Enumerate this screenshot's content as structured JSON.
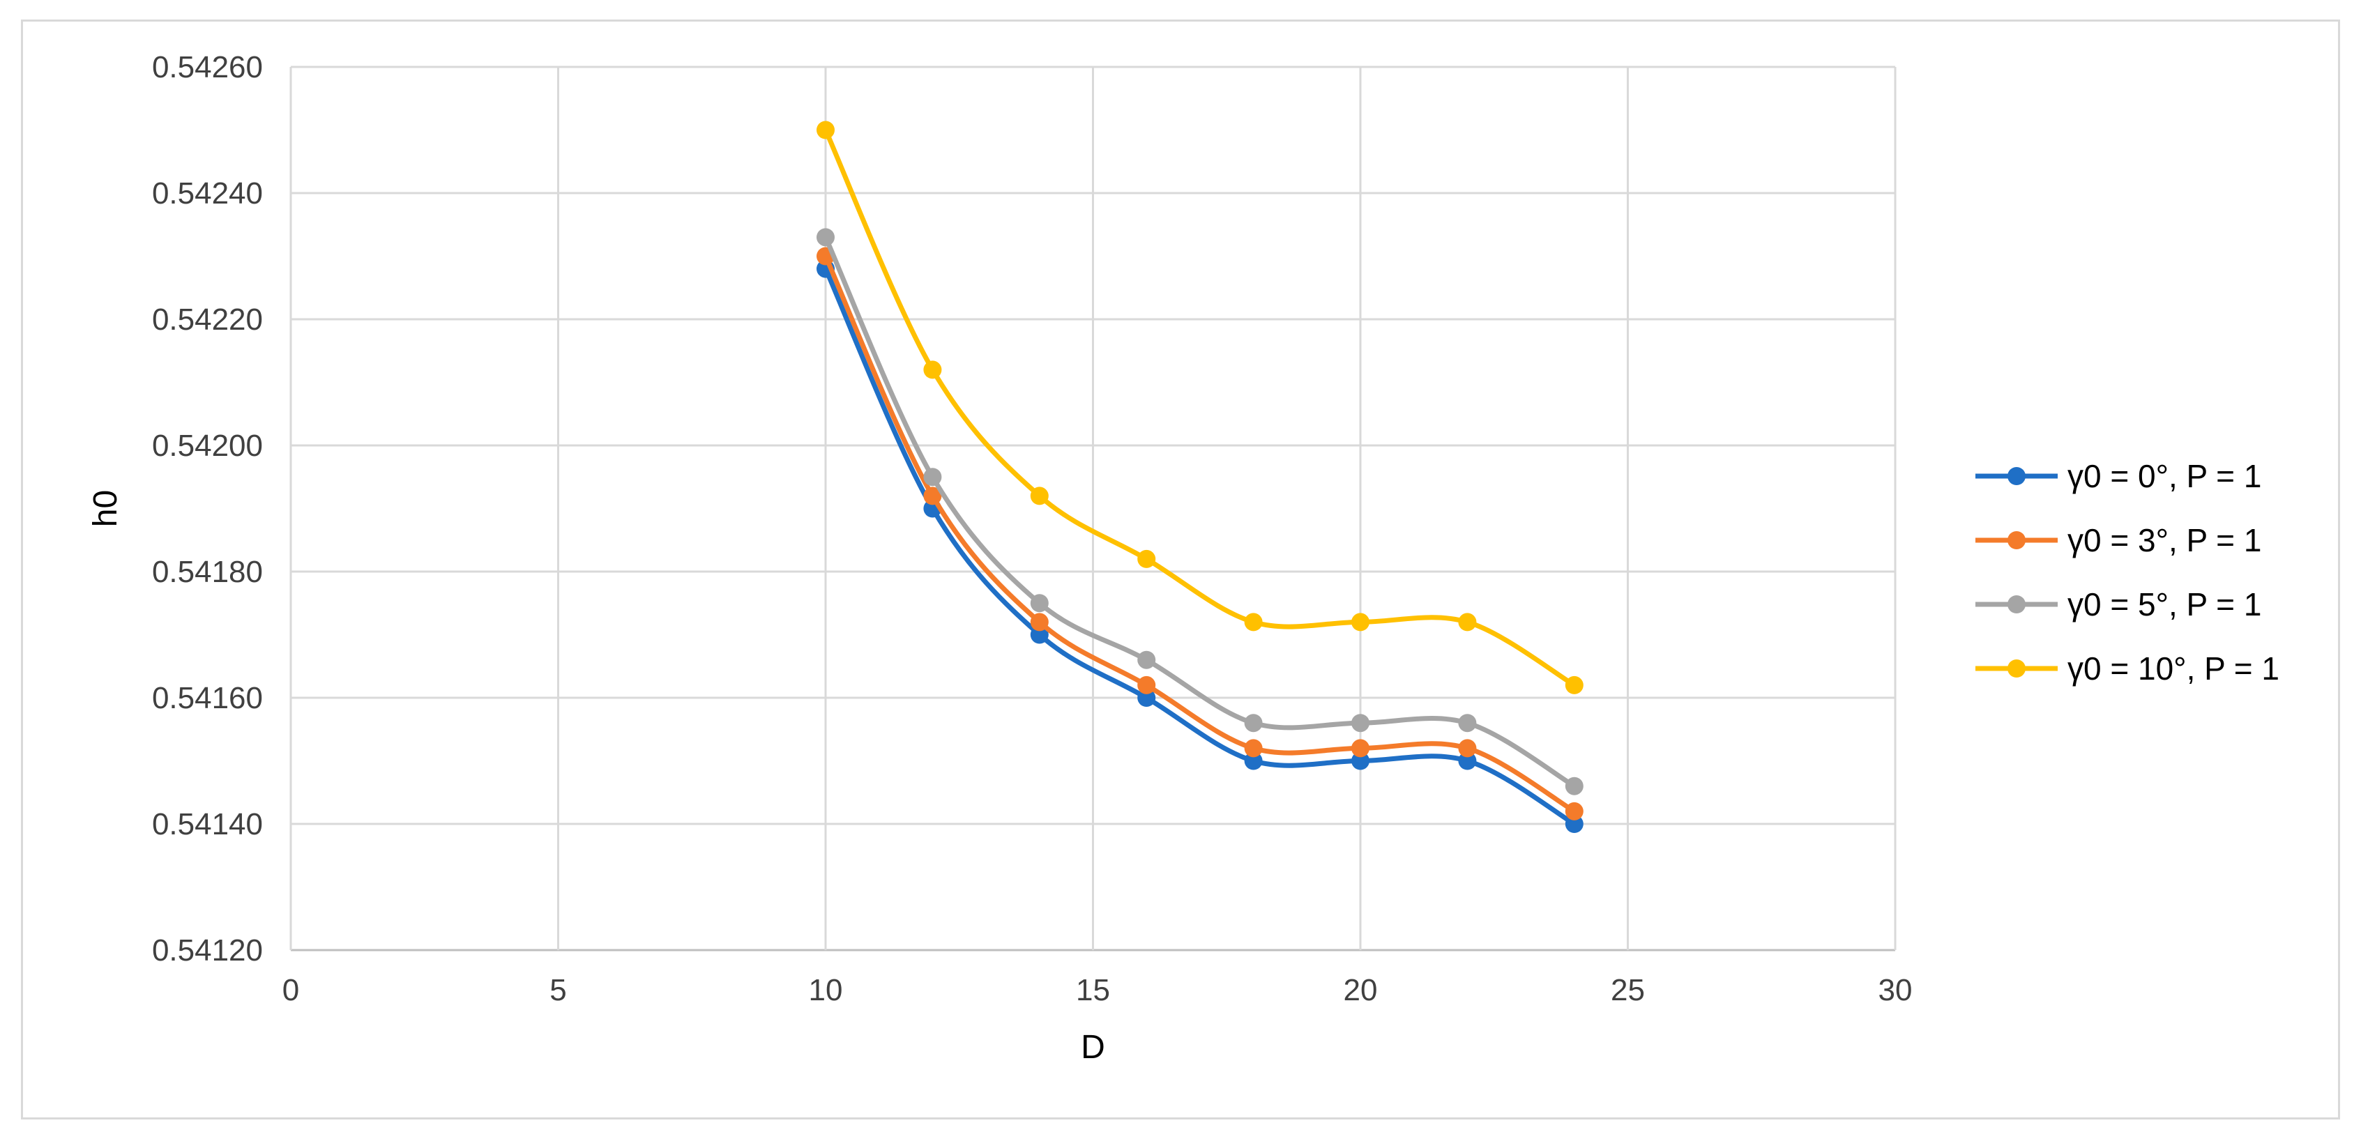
{
  "chart_data": {
    "type": "line",
    "smooth": true,
    "xlabel": "D",
    "ylabel": "h0",
    "xlim": [
      0,
      30
    ],
    "ylim": [
      0.5412,
      0.5426
    ],
    "x_ticks": [
      0,
      5,
      10,
      15,
      20,
      25,
      30
    ],
    "y_ticks": [
      0.5412,
      0.5414,
      0.5416,
      0.5418,
      0.542,
      0.5422,
      0.5424,
      0.5426
    ],
    "x_tick_labels": [
      "0",
      "5",
      "10",
      "15",
      "20",
      "25",
      "30"
    ],
    "y_tick_labels": [
      "0.54120",
      "0.54140",
      "0.54160",
      "0.54180",
      "0.54200",
      "0.54220",
      "0.54240",
      "0.54260"
    ],
    "grid": true,
    "legend_position": "right",
    "x": [
      10,
      12,
      14,
      16,
      18,
      20,
      22,
      24
    ],
    "series": [
      {
        "name": "γ0 = 0°, P = 1",
        "color": "#1f6fc6",
        "values": [
          0.54228,
          0.5419,
          0.5417,
          0.5416,
          0.5415,
          0.5415,
          0.5415,
          0.5414
        ]
      },
      {
        "name": "γ0 = 3°, P = 1",
        "color": "#f47b2a",
        "values": [
          0.5423,
          0.54192,
          0.54172,
          0.54162,
          0.54152,
          0.54152,
          0.54152,
          0.54142
        ]
      },
      {
        "name": "γ0 = 5°, P = 1",
        "color": "#a5a5a5",
        "values": [
          0.54233,
          0.54195,
          0.54175,
          0.54166,
          0.54156,
          0.54156,
          0.54156,
          0.54146
        ]
      },
      {
        "name": "γ0 = 10°, P = 1",
        "color": "#ffc000",
        "values": [
          0.5425,
          0.54212,
          0.54192,
          0.54182,
          0.54172,
          0.54172,
          0.54172,
          0.54162
        ]
      }
    ]
  }
}
